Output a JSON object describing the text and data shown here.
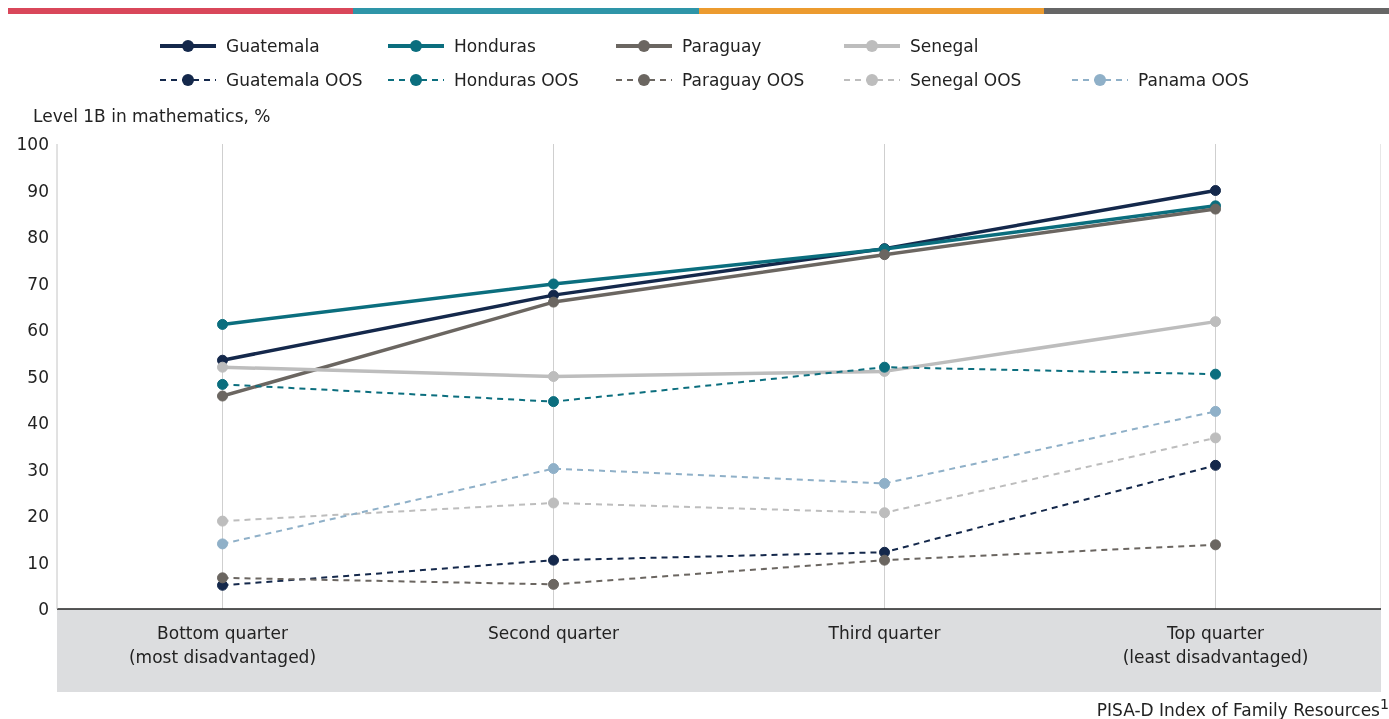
{
  "chart_data": {
    "type": "line",
    "xlabel": "PISA-D Index of Family Resources$^{1}$",
    "ylabel": "Level 1B in mathematics, %",
    "categories": [
      "Bottom quarter\n(most disadvantaged)",
      "Second quarter",
      "Third quarter",
      "Top quarter\n(least disadvantaged)"
    ],
    "ylim": [
      0,
      100
    ],
    "yticks": [
      0,
      10,
      20,
      30,
      40,
      50,
      60,
      70,
      80,
      90,
      100
    ],
    "grid": "x",
    "legend": "top",
    "marker": "circle",
    "series": [
      {
        "name": "Guatemala",
        "color": "#14284b",
        "line_style": "solid",
        "values": [
          53.5,
          67.5,
          77.5,
          90
        ]
      },
      {
        "name": "Honduras",
        "color": "#0b6e7e",
        "line_style": "solid",
        "values": [
          61.2,
          69.9,
          77.4,
          86.7
        ]
      },
      {
        "name": "Paraguay",
        "color": "#6b6661",
        "line_style": "solid",
        "values": [
          45.8,
          66,
          76.2,
          86
        ]
      },
      {
        "name": "Senegal",
        "color": "#bdbdbd",
        "line_style": "solid",
        "values": [
          52,
          50,
          51.1,
          61.8
        ]
      },
      {
        "name": "Guatemala OOS",
        "color": "#14284b",
        "line_style": "dashed",
        "values": [
          5.1,
          10.5,
          12.2,
          30.9
        ]
      },
      {
        "name": "Honduras OOS",
        "color": "#0b6e7e",
        "line_style": "dashed",
        "values": [
          48.3,
          44.6,
          52,
          50.5
        ]
      },
      {
        "name": "Paraguay OOS",
        "color": "#6b6661",
        "line_style": "dashed",
        "values": [
          6.7,
          5.3,
          10.5,
          13.8
        ]
      },
      {
        "name": "Senegal OOS",
        "color": "#bdbdbd",
        "line_style": "dashed",
        "values": [
          18.9,
          22.8,
          20.7,
          36.8
        ]
      },
      {
        "name": "Panama OOS",
        "color": "#8fb0c8",
        "line_style": "dashed",
        "values": [
          14,
          30.2,
          27,
          42.5
        ]
      }
    ]
  }
}
